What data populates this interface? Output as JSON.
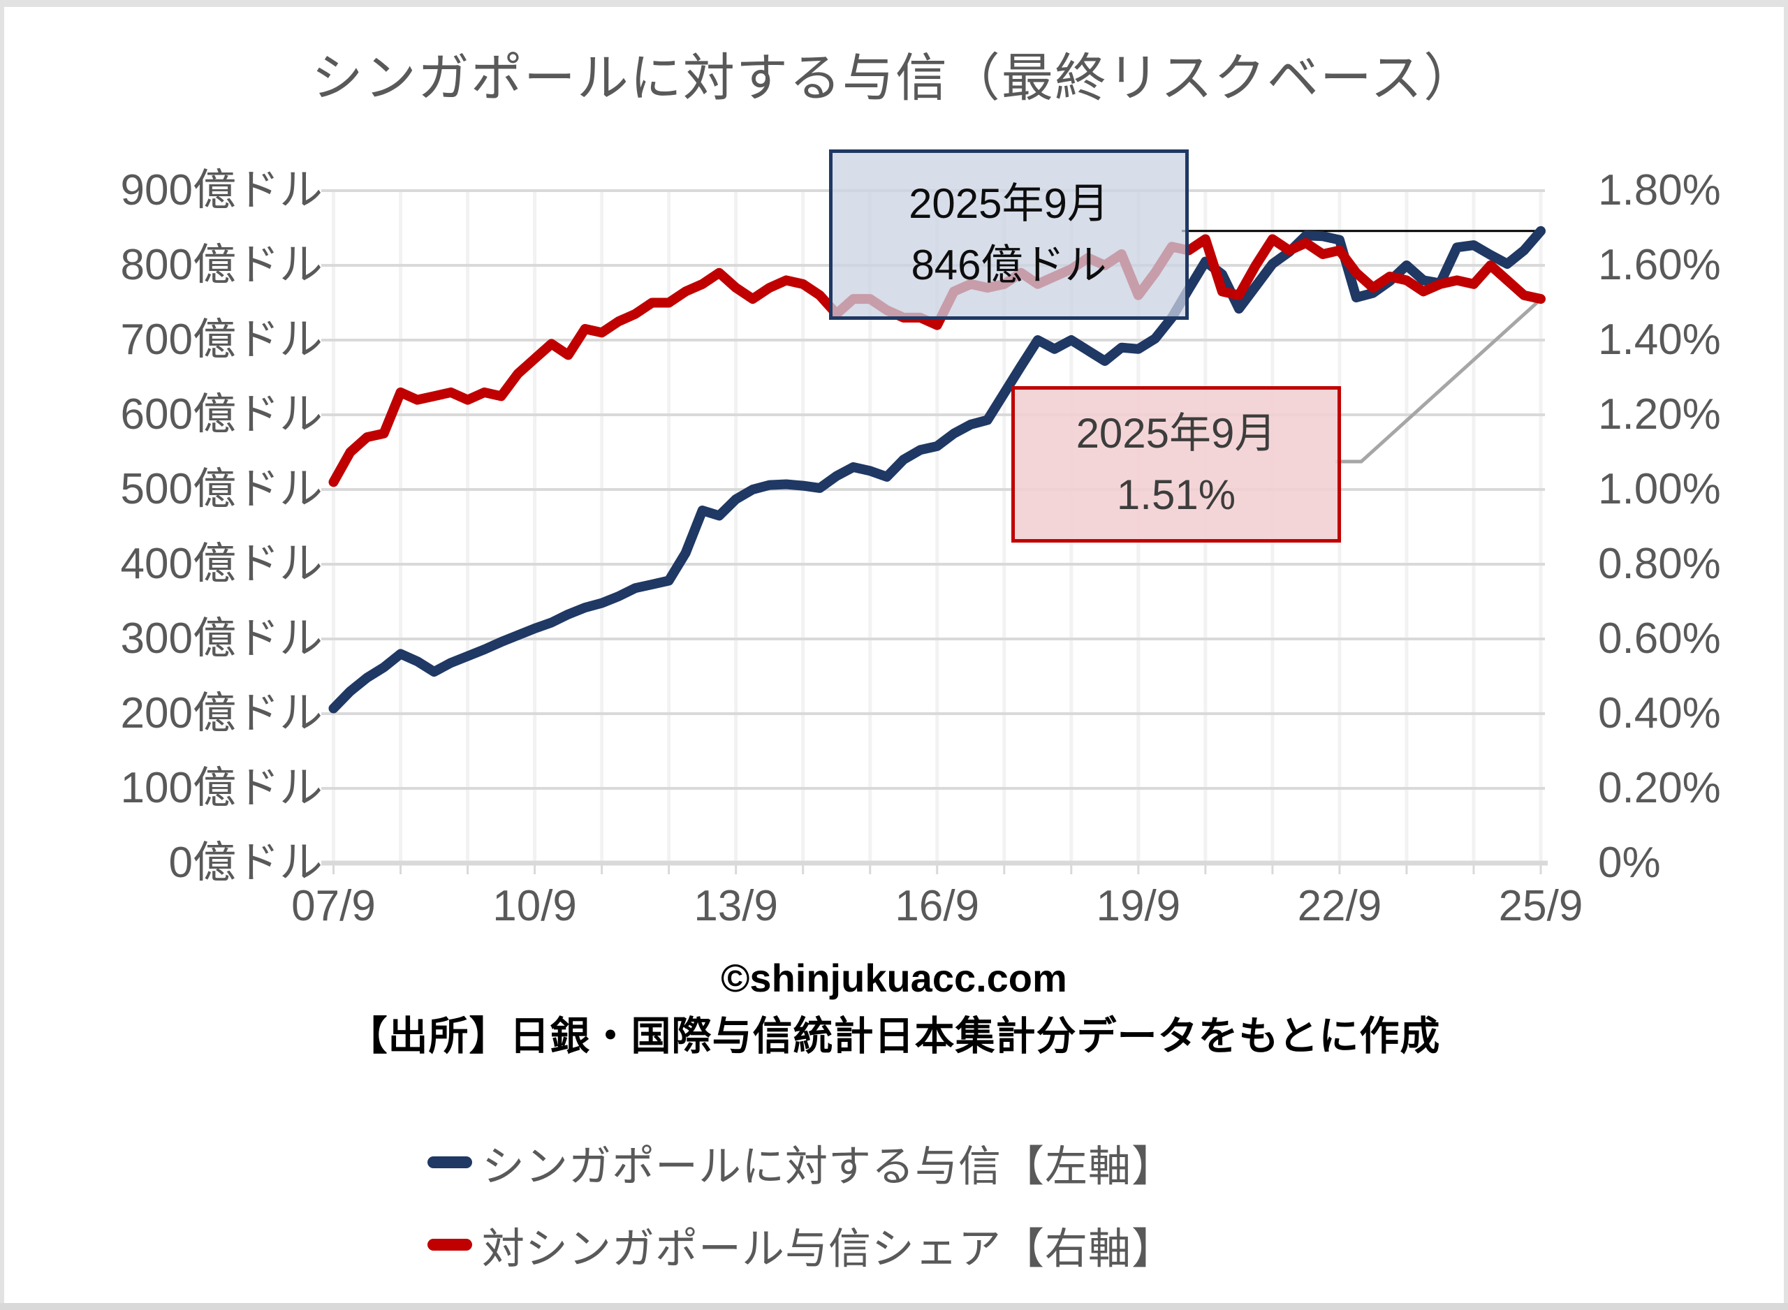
{
  "title": {
    "text": "シンガポールに対する与信（最終リスクベース）",
    "color": "#595959"
  },
  "annotations": {
    "credit": {
      "line1": "2025年9月",
      "line2": "846億ドル",
      "fill": "rgba(202,210,226,0.75)",
      "border": "#1F3864"
    },
    "share": {
      "line1": "2025年9月",
      "line2": "1.51%",
      "fill": "rgba(242,207,210,0.88)",
      "border": "#C00000"
    }
  },
  "footer": {
    "copyright": "©shinjukuacc.com",
    "source": "【出所】日銀・国際与信統計日本集計分データをもとに作成"
  },
  "legend": [
    {
      "label": "シンガポールに対する与信【左軸】",
      "color": "#1F3864"
    },
    {
      "label": "対シンガポール与信シェア【右軸】",
      "color": "#C00000"
    }
  ],
  "chart_data": {
    "type": "line",
    "title": "シンガポールに対する与信（最終リスクベース）",
    "x": [
      "07/9",
      "07/12",
      "08/3",
      "08/6",
      "08/9",
      "08/12",
      "09/3",
      "09/6",
      "09/9",
      "09/12",
      "10/3",
      "10/6",
      "10/9",
      "10/12",
      "11/3",
      "11/6",
      "11/9",
      "11/12",
      "12/3",
      "12/6",
      "12/9",
      "12/12",
      "13/3",
      "13/6",
      "13/9",
      "13/12",
      "14/3",
      "14/6",
      "14/9",
      "14/12",
      "15/3",
      "15/6",
      "15/9",
      "15/12",
      "16/3",
      "16/6",
      "16/9",
      "16/12",
      "17/3",
      "17/6",
      "17/9",
      "17/12",
      "18/3",
      "18/6",
      "18/9",
      "18/12",
      "19/3",
      "19/6",
      "19/9",
      "19/12",
      "20/3",
      "20/6",
      "20/9",
      "20/12",
      "21/3",
      "21/6",
      "21/9",
      "21/12",
      "22/3",
      "22/6",
      "22/9",
      "22/12",
      "23/3",
      "23/6",
      "23/9",
      "23/12",
      "24/3",
      "24/6",
      "24/9",
      "24/12",
      "25/3",
      "25/6",
      "25/9"
    ],
    "x_ticks": [
      "07/9",
      "10/9",
      "13/9",
      "16/9",
      "19/9",
      "22/9",
      "25/9"
    ],
    "series": [
      {
        "name": "シンガポールに対する与信【左軸】",
        "axis": "left",
        "color": "#1F3864",
        "values": [
          207,
          230,
          248,
          262,
          280,
          270,
          256,
          268,
          277,
          286,
          296,
          305,
          314,
          322,
          333,
          342,
          348,
          357,
          368,
          373,
          378,
          415,
          472,
          465,
          487,
          500,
          506,
          507,
          505,
          502,
          518,
          530,
          525,
          517,
          540,
          553,
          558,
          575,
          587,
          593,
          629,
          665,
          700,
          688,
          700,
          686,
          672,
          690,
          688,
          702,
          730,
          768,
          805,
          788,
          742,
          772,
          802,
          818,
          840,
          839,
          834,
          757,
          763,
          779,
          800,
          780,
          776,
          824,
          827,
          814,
          802,
          820,
          846
        ]
      },
      {
        "name": "対シンガポール与信シェア【右軸】",
        "axis": "right",
        "color": "#C00000",
        "values": [
          1.02,
          1.1,
          1.14,
          1.15,
          1.26,
          1.24,
          1.25,
          1.26,
          1.24,
          1.26,
          1.25,
          1.31,
          1.35,
          1.39,
          1.36,
          1.43,
          1.42,
          1.45,
          1.47,
          1.5,
          1.5,
          1.53,
          1.55,
          1.58,
          1.54,
          1.51,
          1.54,
          1.56,
          1.55,
          1.52,
          1.47,
          1.51,
          1.51,
          1.48,
          1.46,
          1.46,
          1.44,
          1.53,
          1.55,
          1.54,
          1.55,
          1.58,
          1.55,
          1.57,
          1.59,
          1.62,
          1.6,
          1.63,
          1.52,
          1.58,
          1.65,
          1.64,
          1.67,
          1.53,
          1.52,
          1.6,
          1.67,
          1.64,
          1.66,
          1.63,
          1.64,
          1.58,
          1.54,
          1.57,
          1.56,
          1.53,
          1.55,
          1.56,
          1.55,
          1.6,
          1.56,
          1.52,
          1.51
        ]
      }
    ],
    "left_axis": {
      "min": 0,
      "max": 900,
      "step": 100,
      "unit": "億ドル",
      "ticks": [
        "900億ドル",
        "800億ドル",
        "700億ドル",
        "600億ドル",
        "500億ドル",
        "400億ドル",
        "300億ドル",
        "200億ドル",
        "100億ドル",
        "0億ドル"
      ]
    },
    "right_axis": {
      "min": 0,
      "max": 1.8,
      "step": 0.2,
      "unit": "%",
      "ticks": [
        "1.80%",
        "1.60%",
        "1.40%",
        "1.20%",
        "1.00%",
        "0.80%",
        "0.60%",
        "0.40%",
        "0.20%",
        "0%"
      ]
    },
    "grid": {
      "h_color": "#D9D9D9",
      "v_color": "#F2F2F2",
      "axis_color": "#D9D9D9",
      "on": true
    },
    "legend_position": "bottom",
    "annotation_values": {
      "last_credit": 846,
      "last_share": 1.51,
      "last_period": "2025年9月"
    }
  }
}
